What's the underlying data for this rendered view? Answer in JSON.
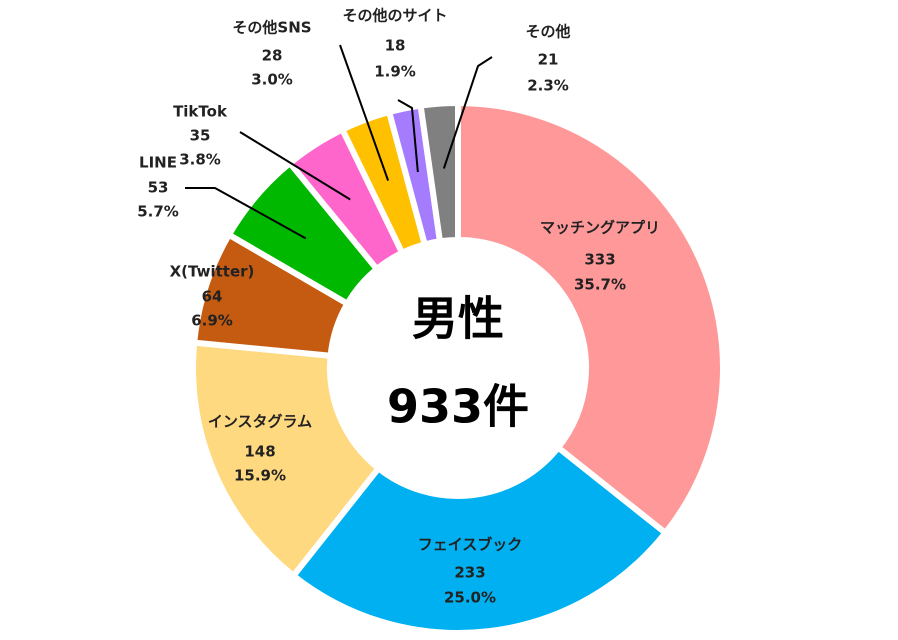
{
  "chart_data": {
    "type": "donut",
    "center_title": "男性",
    "center_total": "933件",
    "categories": [
      "マッチングアプリ",
      "フェイスブック",
      "インスタグラム",
      "X(Twitter)",
      "LINE",
      "TikTok",
      "その他SNS",
      "その他のサイト",
      "その他"
    ],
    "values": [
      333,
      233,
      148,
      64,
      53,
      35,
      28,
      18,
      21
    ],
    "percent_labels": [
      "35.7%",
      "25.0%",
      "15.9%",
      "6.9%",
      "5.7%",
      "3.8%",
      "3.0%",
      "1.9%",
      "2.3%"
    ],
    "colors": [
      "#ff9999",
      "#00b0f0",
      "#ffd97f",
      "#c55a11",
      "#00b800",
      "#ff66cc",
      "#ffc000",
      "#a67cff",
      "#808080"
    ]
  }
}
